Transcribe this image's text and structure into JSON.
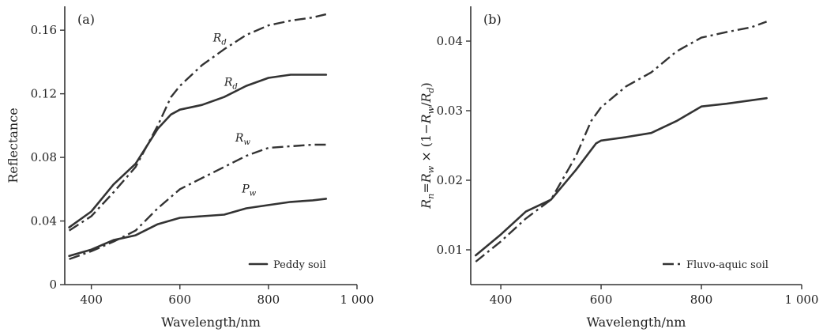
{
  "chart_data": [
    {
      "type": "line",
      "panel_label": "(a)",
      "xlabel": "Wavelength/nm",
      "ylabel": "Reflectance",
      "xlim": [
        340,
        1000
      ],
      "ylim": [
        0,
        0.175
      ],
      "xticks": [
        400,
        600,
        800,
        1000
      ],
      "xtick_labels": [
        "400",
        "600",
        "800",
        "1 000"
      ],
      "yticks": [
        0,
        0.04,
        0.08,
        0.12,
        0.16
      ],
      "ytick_labels": [
        "0",
        "0.04",
        "0.08",
        "0.12",
        "0.16"
      ],
      "legend": {
        "entries": [
          {
            "style": "solid",
            "text": "Peddy soil"
          }
        ],
        "position": "bottom-right"
      },
      "series": [
        {
          "style": "solid",
          "label_main": "R",
          "label_sub": "d",
          "label_at": [
            700,
            0.125
          ],
          "x": [
            350,
            400,
            450,
            500,
            550,
            580,
            600,
            650,
            700,
            750,
            800,
            850,
            900,
            930
          ],
          "y": [
            0.036,
            0.046,
            0.063,
            0.076,
            0.098,
            0.107,
            0.11,
            0.113,
            0.118,
            0.125,
            0.13,
            0.132,
            0.132,
            0.132
          ]
        },
        {
          "style": "dashdot",
          "label_main": "R",
          "label_sub": "d",
          "label_at": [
            675,
            0.153
          ],
          "x": [
            350,
            400,
            450,
            500,
            550,
            580,
            600,
            650,
            700,
            750,
            800,
            850,
            900,
            930
          ],
          "y": [
            0.034,
            0.043,
            0.058,
            0.074,
            0.1,
            0.118,
            0.125,
            0.138,
            0.148,
            0.157,
            0.163,
            0.166,
            0.168,
            0.17
          ]
        },
        {
          "style": "dashdot",
          "label_main": "R",
          "label_sub": "w",
          "label_at": [
            725,
            0.09
          ],
          "x": [
            350,
            400,
            450,
            500,
            550,
            600,
            650,
            700,
            750,
            800,
            850,
            900,
            930
          ],
          "y": [
            0.016,
            0.021,
            0.027,
            0.034,
            0.048,
            0.06,
            0.067,
            0.074,
            0.081,
            0.086,
            0.087,
            0.088,
            0.088
          ]
        },
        {
          "style": "solid",
          "label_main": "P",
          "label_sub": "w",
          "label_at": [
            740,
            0.058
          ],
          "x": [
            350,
            400,
            450,
            500,
            550,
            600,
            650,
            700,
            750,
            800,
            850,
            900,
            930
          ],
          "y": [
            0.018,
            0.022,
            0.028,
            0.031,
            0.038,
            0.042,
            0.043,
            0.044,
            0.048,
            0.05,
            0.052,
            0.053,
            0.054
          ]
        }
      ]
    },
    {
      "type": "line",
      "panel_label": "(b)",
      "xlabel": "Wavelength/nm",
      "ylabel": {
        "parts": [
          {
            "t": "R",
            "i": true
          },
          {
            "t": "n",
            "i": true,
            "sub": true
          },
          {
            "t": "="
          },
          {
            "t": "R",
            "i": true
          },
          {
            "t": "w",
            "i": true,
            "sub": true
          },
          {
            "t": " × (1−"
          },
          {
            "t": "R",
            "i": true
          },
          {
            "t": "w",
            "i": true,
            "sub": true
          },
          {
            "t": "/"
          },
          {
            "t": "R",
            "i": true
          },
          {
            "t": "d",
            "i": true,
            "sub": true
          },
          {
            "t": ")"
          }
        ]
      },
      "xlim": [
        340,
        1000
      ],
      "ylim": [
        0.005,
        0.045
      ],
      "xticks": [
        400,
        600,
        800,
        1000
      ],
      "xtick_labels": [
        "400",
        "600",
        "800",
        "1 000"
      ],
      "yticks": [
        0.01,
        0.02,
        0.03,
        0.04
      ],
      "ytick_labels": [
        "0.01",
        "0.02",
        "0.03",
        "0.04"
      ],
      "legend": {
        "entries": [
          {
            "style": "dashdot",
            "text": "Fluvo-aquic soil"
          }
        ],
        "position": "bottom-right"
      },
      "series": [
        {
          "style": "solid",
          "x": [
            350,
            400,
            450,
            500,
            550,
            590,
            600,
            650,
            700,
            750,
            800,
            850,
            900,
            930
          ],
          "y": [
            0.0092,
            0.0122,
            0.0155,
            0.0172,
            0.0215,
            0.0253,
            0.0257,
            0.0262,
            0.0268,
            0.0285,
            0.0306,
            0.031,
            0.0315,
            0.0318
          ]
        },
        {
          "style": "dashdot",
          "x": [
            350,
            400,
            450,
            500,
            550,
            580,
            600,
            650,
            700,
            750,
            800,
            850,
            900,
            930
          ],
          "y": [
            0.0083,
            0.0112,
            0.0145,
            0.0172,
            0.0235,
            0.0285,
            0.0305,
            0.0335,
            0.0355,
            0.0385,
            0.0405,
            0.0413,
            0.042,
            0.0428
          ]
        }
      ]
    }
  ]
}
